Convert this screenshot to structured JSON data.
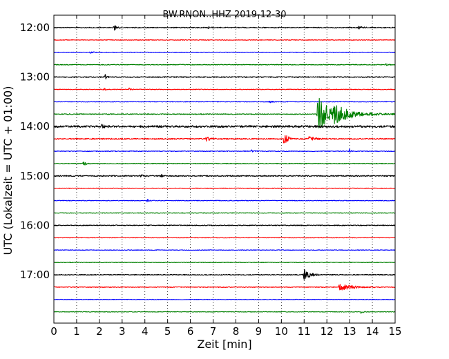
{
  "chart_data": {
    "type": "line",
    "title": "BW.RNON..HHZ 2019-12-30",
    "xlabel": "Zeit  [min]",
    "ylabel": "UTC (Lokalzeit = UTC + 01:00)",
    "xlim": [
      0,
      15
    ],
    "xticks": [
      "0",
      "1",
      "2",
      "3",
      "4",
      "5",
      "6",
      "7",
      "8",
      "9",
      "10",
      "11",
      "12",
      "13",
      "14",
      "15"
    ],
    "yticks": [
      {
        "label": "12:00",
        "trace": 0
      },
      {
        "label": "13:00",
        "trace": 4
      },
      {
        "label": "14:00",
        "trace": 8
      },
      {
        "label": "15:00",
        "trace": 12
      },
      {
        "label": "16:00",
        "trace": 16
      },
      {
        "label": "17:00",
        "trace": 20
      }
    ],
    "trace_interval_min": 15,
    "grid": "vertical-dotted",
    "colors": [
      "#000000",
      "#ff0000",
      "#0000ff",
      "#008000"
    ],
    "series": [
      {
        "start": "12:00",
        "color": "#000000",
        "noise": 0.08,
        "events": [
          {
            "t": 2.65,
            "amp": 0.55,
            "dur": 0.25
          },
          {
            "t": 6.8,
            "amp": 0.18,
            "dur": 0.3
          },
          {
            "t": 13.4,
            "amp": 0.25,
            "dur": 0.4
          }
        ]
      },
      {
        "start": "12:15",
        "color": "#ff0000",
        "noise": 0.05,
        "events": []
      },
      {
        "start": "12:30",
        "color": "#0000ff",
        "noise": 0.05,
        "events": [
          {
            "t": 1.6,
            "amp": 0.15,
            "dur": 0.3
          }
        ]
      },
      {
        "start": "12:45",
        "color": "#008000",
        "noise": 0.06,
        "events": [
          {
            "t": 14.6,
            "amp": 0.15,
            "dur": 0.3
          }
        ]
      },
      {
        "start": "13:00",
        "color": "#000000",
        "noise": 0.08,
        "events": [
          {
            "t": 2.25,
            "amp": 0.45,
            "dur": 0.2
          }
        ]
      },
      {
        "start": "13:15",
        "color": "#ff0000",
        "noise": 0.05,
        "events": [
          {
            "t": 2.2,
            "amp": 0.3,
            "dur": 0.15
          },
          {
            "t": 3.3,
            "amp": 0.25,
            "dur": 0.3
          }
        ]
      },
      {
        "start": "13:30",
        "color": "#0000ff",
        "noise": 0.05,
        "events": [
          {
            "t": 9.5,
            "amp": 0.15,
            "dur": 0.3
          }
        ]
      },
      {
        "start": "13:45",
        "color": "#008000",
        "noise": 0.07,
        "events": [
          {
            "t": 11.6,
            "amp": 2.9,
            "dur": 1.6
          },
          {
            "t": 12.3,
            "amp": 0.9,
            "dur": 3.0
          }
        ]
      },
      {
        "start": "14:00",
        "color": "#000000",
        "noise": 0.16,
        "events": [
          {
            "t": 2.1,
            "amp": 0.3,
            "dur": 0.4
          }
        ]
      },
      {
        "start": "14:15",
        "color": "#ff0000",
        "noise": 0.09,
        "events": [
          {
            "t": 6.7,
            "amp": 0.3,
            "dur": 0.5
          },
          {
            "t": 10.1,
            "amp": 1.4,
            "dur": 0.4
          },
          {
            "t": 11.2,
            "amp": 0.35,
            "dur": 0.8
          }
        ]
      },
      {
        "start": "14:30",
        "color": "#0000ff",
        "noise": 0.06,
        "events": [
          {
            "t": 8.7,
            "amp": 0.2,
            "dur": 0.3
          },
          {
            "t": 13.0,
            "amp": 0.35,
            "dur": 0.3
          }
        ]
      },
      {
        "start": "14:45",
        "color": "#008000",
        "noise": 0.06,
        "events": [
          {
            "t": 1.3,
            "amp": 0.3,
            "dur": 0.4
          }
        ]
      },
      {
        "start": "15:00",
        "color": "#000000",
        "noise": 0.09,
        "events": [
          {
            "t": 3.8,
            "amp": 0.18,
            "dur": 0.6
          },
          {
            "t": 4.7,
            "amp": 0.55,
            "dur": 0.15
          }
        ]
      },
      {
        "start": "15:15",
        "color": "#ff0000",
        "noise": 0.05,
        "events": []
      },
      {
        "start": "15:30",
        "color": "#0000ff",
        "noise": 0.05,
        "events": [
          {
            "t": 4.1,
            "amp": 0.2,
            "dur": 0.3
          }
        ]
      },
      {
        "start": "15:45",
        "color": "#008000",
        "noise": 0.05,
        "events": []
      },
      {
        "start": "16:00",
        "color": "#000000",
        "noise": 0.07,
        "events": []
      },
      {
        "start": "16:15",
        "color": "#ff0000",
        "noise": 0.05,
        "events": []
      },
      {
        "start": "16:30",
        "color": "#0000ff",
        "noise": 0.05,
        "events": []
      },
      {
        "start": "16:45",
        "color": "#008000",
        "noise": 0.05,
        "events": []
      },
      {
        "start": "17:00",
        "color": "#000000",
        "noise": 0.07,
        "events": [
          {
            "t": 11.0,
            "amp": 0.9,
            "dur": 0.7
          }
        ]
      },
      {
        "start": "17:15",
        "color": "#ff0000",
        "noise": 0.06,
        "events": [
          {
            "t": 12.55,
            "amp": 0.5,
            "dur": 1.8
          }
        ]
      },
      {
        "start": "17:30",
        "color": "#0000ff",
        "noise": 0.05,
        "events": []
      },
      {
        "start": "17:45",
        "color": "#008000",
        "noise": 0.05,
        "events": [
          {
            "t": 13.5,
            "amp": 0.3,
            "dur": 0.25
          }
        ]
      }
    ]
  }
}
